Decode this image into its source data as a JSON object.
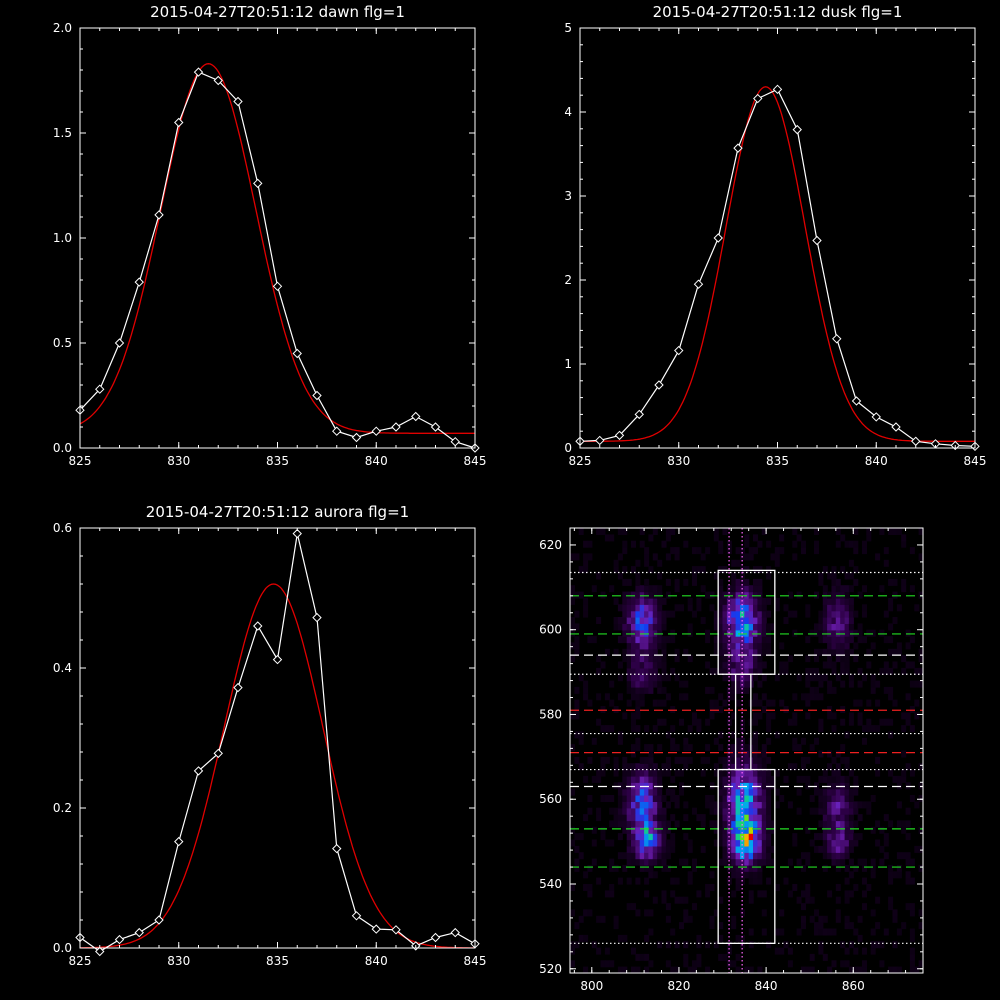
{
  "chart_data": [
    {
      "id": "dawn",
      "type": "line",
      "title": "2015-04-27T20:51:12 dawn flg=1",
      "xlim": [
        825,
        845
      ],
      "ylim": [
        0,
        2.0
      ],
      "xticks": [
        825,
        830,
        835,
        840,
        845
      ],
      "xtick_labels": [
        "825",
        "830",
        "835",
        "840",
        "845"
      ],
      "yticks": [
        0,
        0.5,
        1.0,
        1.5,
        2.0
      ],
      "ytick_labels": [
        "0.0",
        "0.5",
        "1.0",
        "1.5",
        "2.0"
      ],
      "series": [
        {
          "role": "data",
          "color": "#ffffff",
          "marker": "diamond",
          "x": [
            825,
            826,
            827,
            828,
            829,
            830,
            831,
            832,
            833,
            834,
            835,
            836,
            837,
            838,
            839,
            840,
            841,
            842,
            843,
            844,
            845
          ],
          "y": [
            0.18,
            0.28,
            0.5,
            0.79,
            1.11,
            1.55,
            1.79,
            1.75,
            1.65,
            1.26,
            0.77,
            0.45,
            0.25,
            0.08,
            0.05,
            0.08,
            0.1,
            0.15,
            0.1,
            0.03,
            0.0
          ]
        },
        {
          "role": "fit",
          "color": "#e00000",
          "model": "gaussian",
          "amp": 1.76,
          "center": 831.5,
          "sigma": 2.4,
          "offset": 0.07
        }
      ]
    },
    {
      "id": "dusk",
      "type": "line",
      "title": "2015-04-27T20:51:12 dusk flg=1",
      "xlim": [
        825,
        845
      ],
      "ylim": [
        0,
        5
      ],
      "xticks": [
        825,
        830,
        835,
        840,
        845
      ],
      "xtick_labels": [
        "825",
        "830",
        "835",
        "840",
        "845"
      ],
      "yticks": [
        0,
        1,
        2,
        3,
        4,
        5
      ],
      "ytick_labels": [
        "0",
        "1",
        "2",
        "3",
        "4",
        "5"
      ],
      "series": [
        {
          "role": "data",
          "color": "#ffffff",
          "marker": "diamond",
          "x": [
            825,
            826,
            827,
            828,
            829,
            830,
            831,
            832,
            833,
            834,
            835,
            836,
            837,
            838,
            839,
            840,
            841,
            842,
            843,
            844,
            845
          ],
          "y": [
            0.08,
            0.09,
            0.15,
            0.4,
            0.75,
            1.16,
            1.95,
            2.5,
            3.57,
            4.16,
            4.27,
            3.79,
            2.47,
            1.3,
            0.56,
            0.37,
            0.25,
            0.08,
            0.05,
            0.03,
            0.02
          ]
        },
        {
          "role": "fit",
          "color": "#e00000",
          "model": "gaussian",
          "amp": 4.22,
          "center": 834.4,
          "sigma": 2.0,
          "offset": 0.08
        }
      ]
    },
    {
      "id": "aurora",
      "type": "line",
      "title": "2015-04-27T20:51:12 aurora flg=1",
      "xlim": [
        825,
        845
      ],
      "ylim": [
        0,
        0.6
      ],
      "xticks": [
        825,
        830,
        835,
        840,
        845
      ],
      "xtick_labels": [
        "825",
        "830",
        "835",
        "840",
        "845"
      ],
      "yticks": [
        0,
        0.2,
        0.4,
        0.6
      ],
      "ytick_labels": [
        "0.0",
        "0.2",
        "0.4",
        "0.6"
      ],
      "series": [
        {
          "role": "data",
          "color": "#ffffff",
          "marker": "diamond",
          "x": [
            825,
            826,
            827,
            828,
            829,
            830,
            831,
            832,
            833,
            834,
            835,
            836,
            837,
            838,
            839,
            840,
            841,
            842,
            843,
            844,
            845
          ],
          "y": [
            0.015,
            -0.005,
            0.012,
            0.022,
            0.04,
            0.152,
            0.253,
            0.278,
            0.372,
            0.46,
            0.412,
            0.592,
            0.472,
            0.142,
            0.046,
            0.027,
            0.026,
            0.003,
            0.015,
            0.022,
            0.006
          ]
        },
        {
          "role": "fit",
          "color": "#e00000",
          "model": "gaussian",
          "amp": 0.52,
          "center": 834.8,
          "sigma": 2.5,
          "offset": 0.0
        }
      ]
    },
    {
      "id": "image",
      "type": "heatmap",
      "title": "",
      "xlim": [
        795,
        876
      ],
      "ylim": [
        519,
        624
      ],
      "xticks": [
        800,
        820,
        840,
        860
      ],
      "xtick_labels": [
        "800",
        "820",
        "840",
        "860"
      ],
      "yticks": [
        520,
        540,
        560,
        580,
        600,
        620
      ],
      "ytick_labels": [
        "520",
        "540",
        "560",
        "580",
        "600",
        "620"
      ],
      "blobs": [
        {
          "x": 811,
          "y": 601,
          "sx": 2.2,
          "sy": 4.0,
          "amp": 0.42
        },
        {
          "x": 811,
          "y": 589,
          "sx": 2.0,
          "sy": 3.0,
          "amp": 0.16
        },
        {
          "x": 811,
          "y": 559,
          "sx": 2.2,
          "sy": 4.0,
          "amp": 0.42
        },
        {
          "x": 812,
          "y": 550,
          "sx": 2.0,
          "sy": 3.0,
          "amp": 0.5
        },
        {
          "x": 834,
          "y": 601,
          "sx": 2.4,
          "sy": 4.5,
          "amp": 0.55
        },
        {
          "x": 834,
          "y": 590,
          "sx": 2.0,
          "sy": 3.0,
          "amp": 0.2
        },
        {
          "x": 834.5,
          "y": 558,
          "sx": 2.5,
          "sy": 6.0,
          "amp": 0.58
        },
        {
          "x": 835,
          "y": 549,
          "sx": 2.0,
          "sy": 3.0,
          "amp": 0.65
        },
        {
          "x": 856,
          "y": 601,
          "sx": 2.0,
          "sy": 4.0,
          "amp": 0.24
        },
        {
          "x": 856,
          "y": 557,
          "sx": 2.0,
          "sy": 4.0,
          "amp": 0.22
        },
        {
          "x": 856,
          "y": 549,
          "sx": 1.8,
          "sy": 2.5,
          "amp": 0.22
        }
      ],
      "hlines": [
        {
          "y": 613.5,
          "style": "dotted",
          "color": "#ffffff"
        },
        {
          "y": 608,
          "style": "dashed",
          "color": "#22dd22"
        },
        {
          "y": 599,
          "style": "dashed",
          "color": "#22dd22"
        },
        {
          "y": 594,
          "style": "dashed",
          "color": "#ffffff"
        },
        {
          "y": 589.5,
          "style": "dotted",
          "color": "#ffffff"
        },
        {
          "y": 581,
          "style": "dashed",
          "color": "#ee2020"
        },
        {
          "y": 575.5,
          "style": "dotted",
          "color": "#ffffff"
        },
        {
          "y": 571,
          "style": "dashed",
          "color": "#ee2020"
        },
        {
          "y": 567,
          "style": "dotted",
          "color": "#ffffff"
        },
        {
          "y": 563,
          "style": "dashed",
          "color": "#ffffff"
        },
        {
          "y": 553,
          "style": "dashed",
          "color": "#22dd22"
        },
        {
          "y": 544,
          "style": "dashed",
          "color": "#22dd22"
        },
        {
          "y": 526,
          "style": "dotted",
          "color": "#ffffff"
        }
      ],
      "vlines": [
        {
          "x": 831.5,
          "style": "dotted",
          "color": "#ff66ff"
        },
        {
          "x": 834.5,
          "style": "dotted",
          "color": "#ff66ff"
        }
      ],
      "regions": [
        {
          "x0": 829,
          "x1": 842,
          "y0": 589.5,
          "y1": 614
        },
        {
          "x0": 829,
          "x1": 842,
          "y0": 526,
          "y1": 567
        },
        {
          "x0": 833,
          "x1": 836.5,
          "y0": 567,
          "y1": 589.5
        }
      ]
    }
  ]
}
